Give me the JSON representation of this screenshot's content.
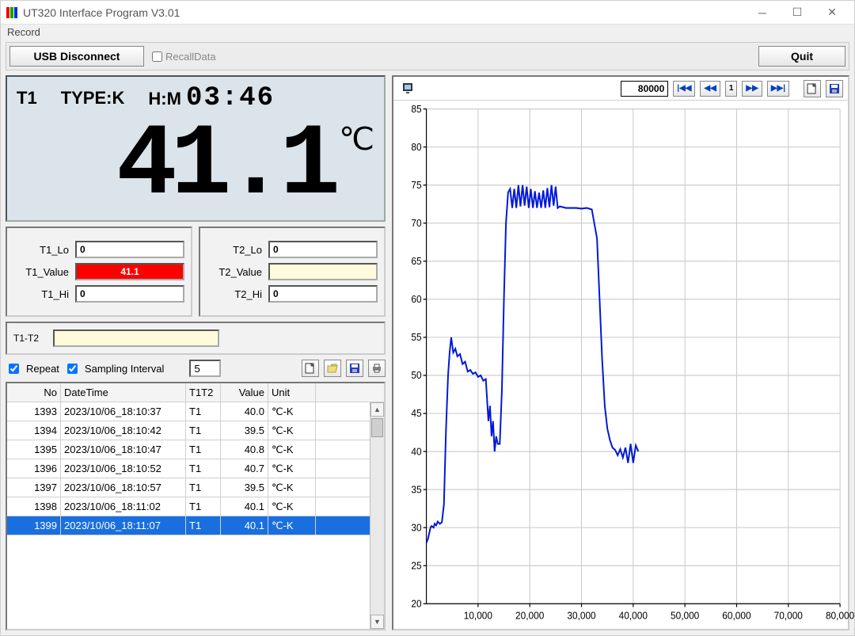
{
  "window": {
    "title": "UT320 Interface Program V3.01",
    "menu_record": "Record"
  },
  "toolbar": {
    "usb_button": "USB Disconnect",
    "recall_label": "RecallData",
    "recall_checked": false,
    "quit_button": "Quit"
  },
  "lcd": {
    "channel": "T1",
    "type_label": "TYPE:K",
    "hm_label": "H:M",
    "hm_value": "03:46",
    "reading": "41.1",
    "unit": "℃"
  },
  "values": {
    "t1_lo_label": "T1_Lo",
    "t1_lo": "0",
    "t1_val_label": "T1_Value",
    "t1_val": "41.1",
    "t1_hi_label": "T1_Hi",
    "t1_hi": "0",
    "t2_lo_label": "T2_Lo",
    "t2_lo": "0",
    "t2_val_label": "T2_Value",
    "t2_val": "",
    "t2_hi_label": "T2_Hi",
    "t2_hi": "0",
    "diff_label": "T1-T2",
    "diff": ""
  },
  "sampling": {
    "repeat_label": "Repeat",
    "repeat_checked": true,
    "interval_label": "Sampling Interval",
    "interval_checked": true,
    "interval_value": "5"
  },
  "table": {
    "columns": [
      "No",
      "DateTime",
      "T1T2",
      "Value",
      "Unit"
    ],
    "rows": [
      {
        "no": "1393",
        "dt": "2023/10/06_18:10:37",
        "t": "T1",
        "v": "40.0",
        "u": "℃-K",
        "sel": false
      },
      {
        "no": "1394",
        "dt": "2023/10/06_18:10:42",
        "t": "T1",
        "v": "39.5",
        "u": "℃-K",
        "sel": false
      },
      {
        "no": "1395",
        "dt": "2023/10/06_18:10:47",
        "t": "T1",
        "v": "40.8",
        "u": "℃-K",
        "sel": false
      },
      {
        "no": "1396",
        "dt": "2023/10/06_18:10:52",
        "t": "T1",
        "v": "40.7",
        "u": "℃-K",
        "sel": false
      },
      {
        "no": "1397",
        "dt": "2023/10/06_18:10:57",
        "t": "T1",
        "v": "39.5",
        "u": "℃-K",
        "sel": false
      },
      {
        "no": "1398",
        "dt": "2023/10/06_18:11:02",
        "t": "T1",
        "v": "40.1",
        "u": "℃-K",
        "sel": false
      },
      {
        "no": "1399",
        "dt": "2023/10/06_18:11:07",
        "t": "T1",
        "v": "40.1",
        "u": "℃-K",
        "sel": true
      }
    ]
  },
  "chart": {
    "toolbar_value": "80000",
    "nav_page": "1",
    "type": "line",
    "xlim": [
      0,
      80000
    ],
    "ylim": [
      20,
      85
    ],
    "xtick_step": 10000,
    "ytick_step": 5,
    "xtick_labels": [
      "10,000",
      "20,000",
      "30,000",
      "40,000",
      "50,000",
      "60,000",
      "70,000",
      "80,000"
    ],
    "background_color": "#ffffff",
    "grid_color": "#c8c8c8",
    "series_color": "#0018d8",
    "line_width": 2,
    "series": [
      [
        0,
        28
      ],
      [
        300,
        28.5
      ],
      [
        800,
        30
      ],
      [
        1000,
        30.2
      ],
      [
        1400,
        30
      ],
      [
        1600,
        30.5
      ],
      [
        1900,
        30.3
      ],
      [
        2200,
        30.8
      ],
      [
        2600,
        30.5
      ],
      [
        3000,
        30.7
      ],
      [
        3400,
        33
      ],
      [
        3800,
        43
      ],
      [
        4200,
        50
      ],
      [
        4500,
        53
      ],
      [
        4800,
        55
      ],
      [
        5200,
        53
      ],
      [
        5600,
        53.5
      ],
      [
        6000,
        52.5
      ],
      [
        6500,
        52.8
      ],
      [
        7000,
        51.5
      ],
      [
        7500,
        51.8
      ],
      [
        8000,
        50.5
      ],
      [
        8500,
        50.7
      ],
      [
        9000,
        50.2
      ],
      [
        9500,
        50.4
      ],
      [
        10000,
        49.8
      ],
      [
        10500,
        50
      ],
      [
        11000,
        49.3
      ],
      [
        11500,
        49.5
      ],
      [
        12000,
        44
      ],
      [
        12300,
        46
      ],
      [
        12600,
        42
      ],
      [
        12900,
        44
      ],
      [
        13200,
        40
      ],
      [
        13500,
        42
      ],
      [
        13800,
        41
      ],
      [
        14200,
        41
      ],
      [
        14600,
        48
      ],
      [
        15000,
        60
      ],
      [
        15400,
        70
      ],
      [
        15800,
        74
      ],
      [
        16200,
        74.5
      ],
      [
        16600,
        72
      ],
      [
        17000,
        74.5
      ],
      [
        17400,
        72
      ],
      [
        17800,
        75
      ],
      [
        18200,
        72.2
      ],
      [
        18600,
        75
      ],
      [
        19000,
        72.3
      ],
      [
        19400,
        74.8
      ],
      [
        19800,
        72
      ],
      [
        20200,
        74.5
      ],
      [
        20600,
        72
      ],
      [
        21000,
        74.2
      ],
      [
        21400,
        72
      ],
      [
        21800,
        74
      ],
      [
        22200,
        72
      ],
      [
        22600,
        74.3
      ],
      [
        23000,
        72
      ],
      [
        23400,
        74.6
      ],
      [
        23800,
        72.1
      ],
      [
        24200,
        75
      ],
      [
        24600,
        72.3
      ],
      [
        25000,
        74.8
      ],
      [
        25400,
        72
      ],
      [
        25800,
        72.2
      ],
      [
        27000,
        72
      ],
      [
        28000,
        72
      ],
      [
        29000,
        72
      ],
      [
        30000,
        71.9
      ],
      [
        31000,
        72
      ],
      [
        32000,
        71.8
      ],
      [
        33000,
        68
      ],
      [
        33500,
        60
      ],
      [
        34000,
        52
      ],
      [
        34500,
        46
      ],
      [
        35000,
        43
      ],
      [
        35500,
        41.5
      ],
      [
        36000,
        40.5
      ],
      [
        36500,
        40.2
      ],
      [
        37000,
        39.5
      ],
      [
        37500,
        40.3
      ],
      [
        38000,
        39.2
      ],
      [
        38500,
        40.5
      ],
      [
        39000,
        38.5
      ],
      [
        39500,
        41
      ],
      [
        40000,
        38.5
      ],
      [
        40500,
        40.8
      ],
      [
        41000,
        40
      ]
    ]
  }
}
